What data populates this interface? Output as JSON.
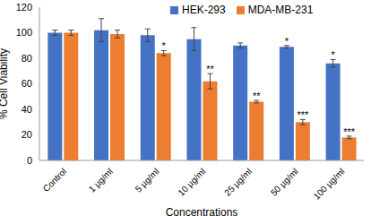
{
  "chart_data": {
    "type": "bar",
    "x_label": "Concentrations",
    "y_label": "% Cell Viability",
    "categories": [
      "Control",
      "1 µg/ml",
      "5 µg/ml",
      "10 µg/ml",
      "25 µg/ml",
      "50 µg/ml",
      "100 µg/ml"
    ],
    "series": [
      {
        "name": "HEK-293",
        "color": "#4472c4",
        "values": [
          100,
          102,
          98,
          95,
          90,
          89,
          76
        ],
        "errors": [
          2,
          9,
          5,
          9,
          2,
          1,
          3
        ],
        "significance": [
          null,
          null,
          null,
          null,
          null,
          "*",
          "*"
        ]
      },
      {
        "name": "MDA-MB-231",
        "color": "#ed7d31",
        "values": [
          100,
          99,
          84,
          62,
          46,
          30,
          18
        ],
        "errors": [
          2,
          3,
          2,
          6,
          1,
          2,
          1
        ],
        "significance": [
          null,
          null,
          "*",
          "**",
          "**",
          "***",
          "***"
        ]
      }
    ],
    "ylim": [
      0,
      120
    ],
    "yticks": [
      0,
      20,
      40,
      60,
      80,
      100,
      120
    ],
    "grid": false,
    "legend": "top"
  }
}
